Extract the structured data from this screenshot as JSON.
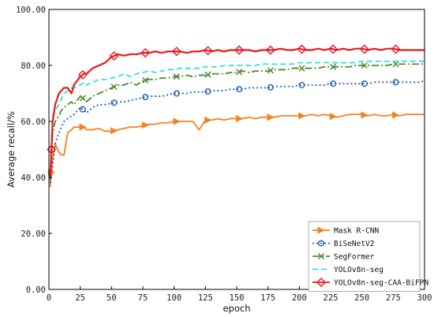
{
  "chart_data": {
    "type": "line",
    "xlabel": "epoch",
    "ylabel": "Average recall/%",
    "xlim": [
      0,
      300
    ],
    "ylim": [
      0,
      100
    ],
    "x_ticks": [
      0,
      25,
      50,
      75,
      100,
      125,
      150,
      175,
      200,
      225,
      250,
      275,
      300
    ],
    "y_ticks": [
      "0.00",
      "20.00",
      "40.00",
      "60.00",
      "80.00",
      "100.00"
    ],
    "y_tick_values": [
      0,
      20,
      40,
      60,
      80,
      100
    ],
    "grid": false,
    "legend_position": "bottom-right",
    "x": [
      1,
      3,
      5,
      8,
      10,
      12,
      15,
      18,
      20,
      25,
      28,
      30,
      35,
      40,
      45,
      50,
      55,
      60,
      65,
      70,
      75,
      80,
      85,
      90,
      95,
      100,
      105,
      110,
      115,
      120,
      125,
      130,
      135,
      140,
      145,
      150,
      155,
      160,
      165,
      170,
      175,
      180,
      185,
      190,
      195,
      200,
      205,
      210,
      215,
      220,
      225,
      230,
      235,
      240,
      245,
      250,
      255,
      260,
      265,
      270,
      275,
      280,
      285,
      290,
      295,
      300
    ],
    "series": [
      {
        "name": "Mask R-CNN",
        "color": "#f58220",
        "dash": "solid",
        "marker": "arrow",
        "values": [
          36.5,
          47,
          52,
          49,
          48,
          48,
          56,
          57,
          58,
          58,
          58,
          57,
          57,
          57.5,
          56.5,
          56.5,
          57,
          57.5,
          58,
          58,
          58.5,
          59,
          59,
          59.5,
          59.5,
          60,
          60,
          60,
          60,
          57,
          60.5,
          60.5,
          61,
          60.5,
          61,
          61,
          61,
          61.5,
          61,
          61.5,
          61.5,
          61.5,
          62,
          62,
          62,
          62,
          62,
          62.5,
          62,
          62.5,
          62,
          61.5,
          62,
          62.5,
          62.5,
          62.5,
          62,
          62.5,
          62,
          62,
          62.5,
          62,
          62.5,
          62.5,
          62.5,
          62.5
        ],
        "marker_x": [
          2,
          27,
          52,
          77,
          102,
          127,
          152,
          177,
          202,
          227,
          252,
          277
        ]
      },
      {
        "name": "BiSeNetV2",
        "color": "#1f5fb4",
        "dash": "2,3",
        "marker": "circle",
        "values": [
          38,
          44,
          52,
          56,
          58,
          60,
          61,
          62,
          62.5,
          65,
          64,
          63,
          65,
          66,
          66,
          66.5,
          67,
          67,
          67.5,
          68,
          68.5,
          69,
          69,
          69,
          69.5,
          70,
          70,
          70,
          70.5,
          70.5,
          70.5,
          71,
          71,
          71,
          71.5,
          71.5,
          71.5,
          72,
          72,
          72,
          72,
          72.5,
          72.5,
          72.5,
          72.5,
          73,
          73,
          73,
          73,
          73,
          73.5,
          73.5,
          73.5,
          73.5,
          73.5,
          73.5,
          73.5,
          74,
          74,
          74,
          74,
          74,
          74,
          74,
          74,
          74.5
        ],
        "marker_x": [
          27,
          52,
          77,
          102,
          127,
          152,
          177,
          202,
          227,
          252,
          277
        ]
      },
      {
        "name": "SegFormer",
        "color": "#4e8a2e",
        "dash": "9,3,2,3",
        "marker": "x",
        "values": [
          39,
          56,
          60,
          62,
          64,
          65,
          66,
          67,
          66,
          69,
          68,
          67,
          69,
          70,
          71,
          72,
          73,
          73,
          74,
          73,
          74.5,
          75,
          75,
          75.5,
          75.5,
          76,
          76,
          76.5,
          76,
          76.5,
          76.5,
          77,
          77,
          77,
          77.5,
          77.5,
          78,
          77.5,
          78,
          78,
          78,
          78.5,
          78.5,
          78.5,
          79,
          79,
          79,
          79,
          79,
          79.5,
          79.5,
          79.5,
          79.5,
          79.5,
          80,
          80,
          80,
          80,
          80,
          80,
          80.5,
          80.5,
          80.5,
          80.5,
          80.5,
          80.5
        ],
        "marker_x": [
          27,
          52,
          77,
          102,
          127,
          152,
          177,
          202,
          227,
          252,
          277
        ]
      },
      {
        "name": "YOLOv8n-seg",
        "color": "#33e0e0",
        "dash": "7,4",
        "marker": "none",
        "values": [
          40,
          62,
          64,
          66,
          68,
          70,
          71,
          72,
          72,
          73,
          74,
          73,
          74,
          75,
          75,
          75.5,
          76,
          77,
          76,
          77,
          77.5,
          78,
          77.5,
          78,
          78.5,
          78.5,
          79,
          79,
          79,
          79,
          79.5,
          79.5,
          79.5,
          80,
          80,
          80,
          80,
          80,
          80,
          80.5,
          80.5,
          80.5,
          80.5,
          80.5,
          80.5,
          81,
          81,
          81,
          81,
          81,
          81,
          81,
          81,
          81,
          81,
          81.5,
          81.5,
          81.5,
          81.5,
          81.5,
          81.5,
          81.5,
          81.5,
          81.5,
          81.5,
          81.5
        ],
        "marker_x": []
      },
      {
        "name": "YOLOv8n-seg-CAA-BiFPN",
        "color": "#e8191c",
        "dash": "solid",
        "marker": "diamond",
        "values": [
          40,
          60,
          66,
          70,
          71,
          72,
          72,
          70,
          73,
          76,
          77,
          77,
          79,
          80,
          81,
          83,
          84,
          83.5,
          84,
          84,
          84.5,
          84.5,
          85,
          84.5,
          85,
          85,
          85,
          84.5,
          85,
          85,
          85.5,
          85,
          85.5,
          85,
          85.5,
          85.5,
          85.5,
          85.5,
          85,
          85.5,
          85.5,
          85.5,
          86,
          85.5,
          85.5,
          86,
          85.5,
          85.5,
          86,
          85.5,
          86,
          85.5,
          86,
          85.5,
          86,
          86,
          85.5,
          86,
          85.5,
          86,
          86,
          85.5,
          85.5,
          85.5,
          85.5,
          85.5
        ],
        "marker_x": [
          2,
          27,
          52,
          77,
          102,
          127,
          152,
          177,
          202,
          227,
          252,
          277
        ]
      }
    ]
  }
}
